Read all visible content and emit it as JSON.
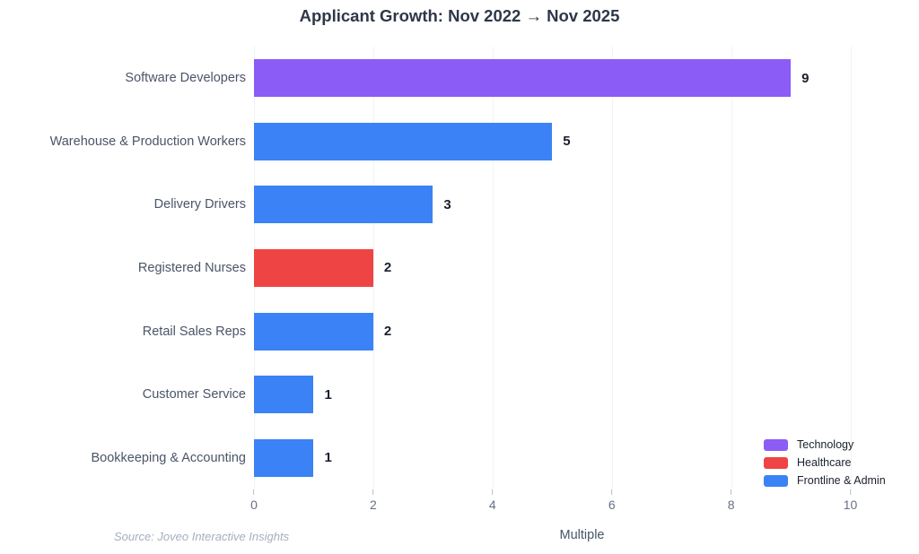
{
  "title": "Applicant Growth: Nov 2022 → Nov 2025",
  "footer": {
    "source": "Source: Joveo Interactive Insights"
  },
  "chart_data": {
    "type": "bar",
    "orientation": "horizontal",
    "title": "Applicant Growth: Nov 2022 → Nov 2025",
    "xlabel": "Multiple",
    "ylabel": "",
    "xlim": [
      0,
      11
    ],
    "xticks": [
      0,
      2,
      4,
      6,
      8,
      10
    ],
    "grid": "vertical gridlines on, no axis line",
    "legend_position": "inside bottom-right",
    "categories": [
      "Software Developers",
      "Warehouse & Production Workers",
      "Delivery Drivers",
      "Registered Nurses",
      "Retail Sales Reps",
      "Customer Service",
      "Bookkeeping & Accounting"
    ],
    "values": [
      9,
      5,
      3,
      2,
      2,
      1,
      1
    ],
    "value_labels": [
      "9",
      "5",
      "3",
      "2",
      "2",
      "1",
      "1"
    ],
    "bar_groups": [
      "Technology",
      "Frontline & Admin",
      "Frontline & Admin",
      "Healthcare",
      "Frontline & Admin",
      "Frontline & Admin",
      "Frontline & Admin"
    ],
    "legend": [
      {
        "label": "Technology",
        "color": "#8b5cf6"
      },
      {
        "label": "Healthcare",
        "color": "#ef4444"
      },
      {
        "label": "Frontline & Admin",
        "color": "#3b82f6"
      }
    ],
    "group_colors": {
      "Technology": "#8b5cf6",
      "Healthcare": "#ef4444",
      "Frontline & Admin": "#3b82f6"
    }
  },
  "theme": {
    "background": "#ffffff",
    "title_color": "#2d3748",
    "category_label_color": "#4a5568",
    "value_label_color": "#1a202c",
    "tick_label_color": "#667085",
    "axis_title_color": "#475569",
    "source_color": "#a6aec0",
    "gridline_color": "#f1f3f5"
  }
}
